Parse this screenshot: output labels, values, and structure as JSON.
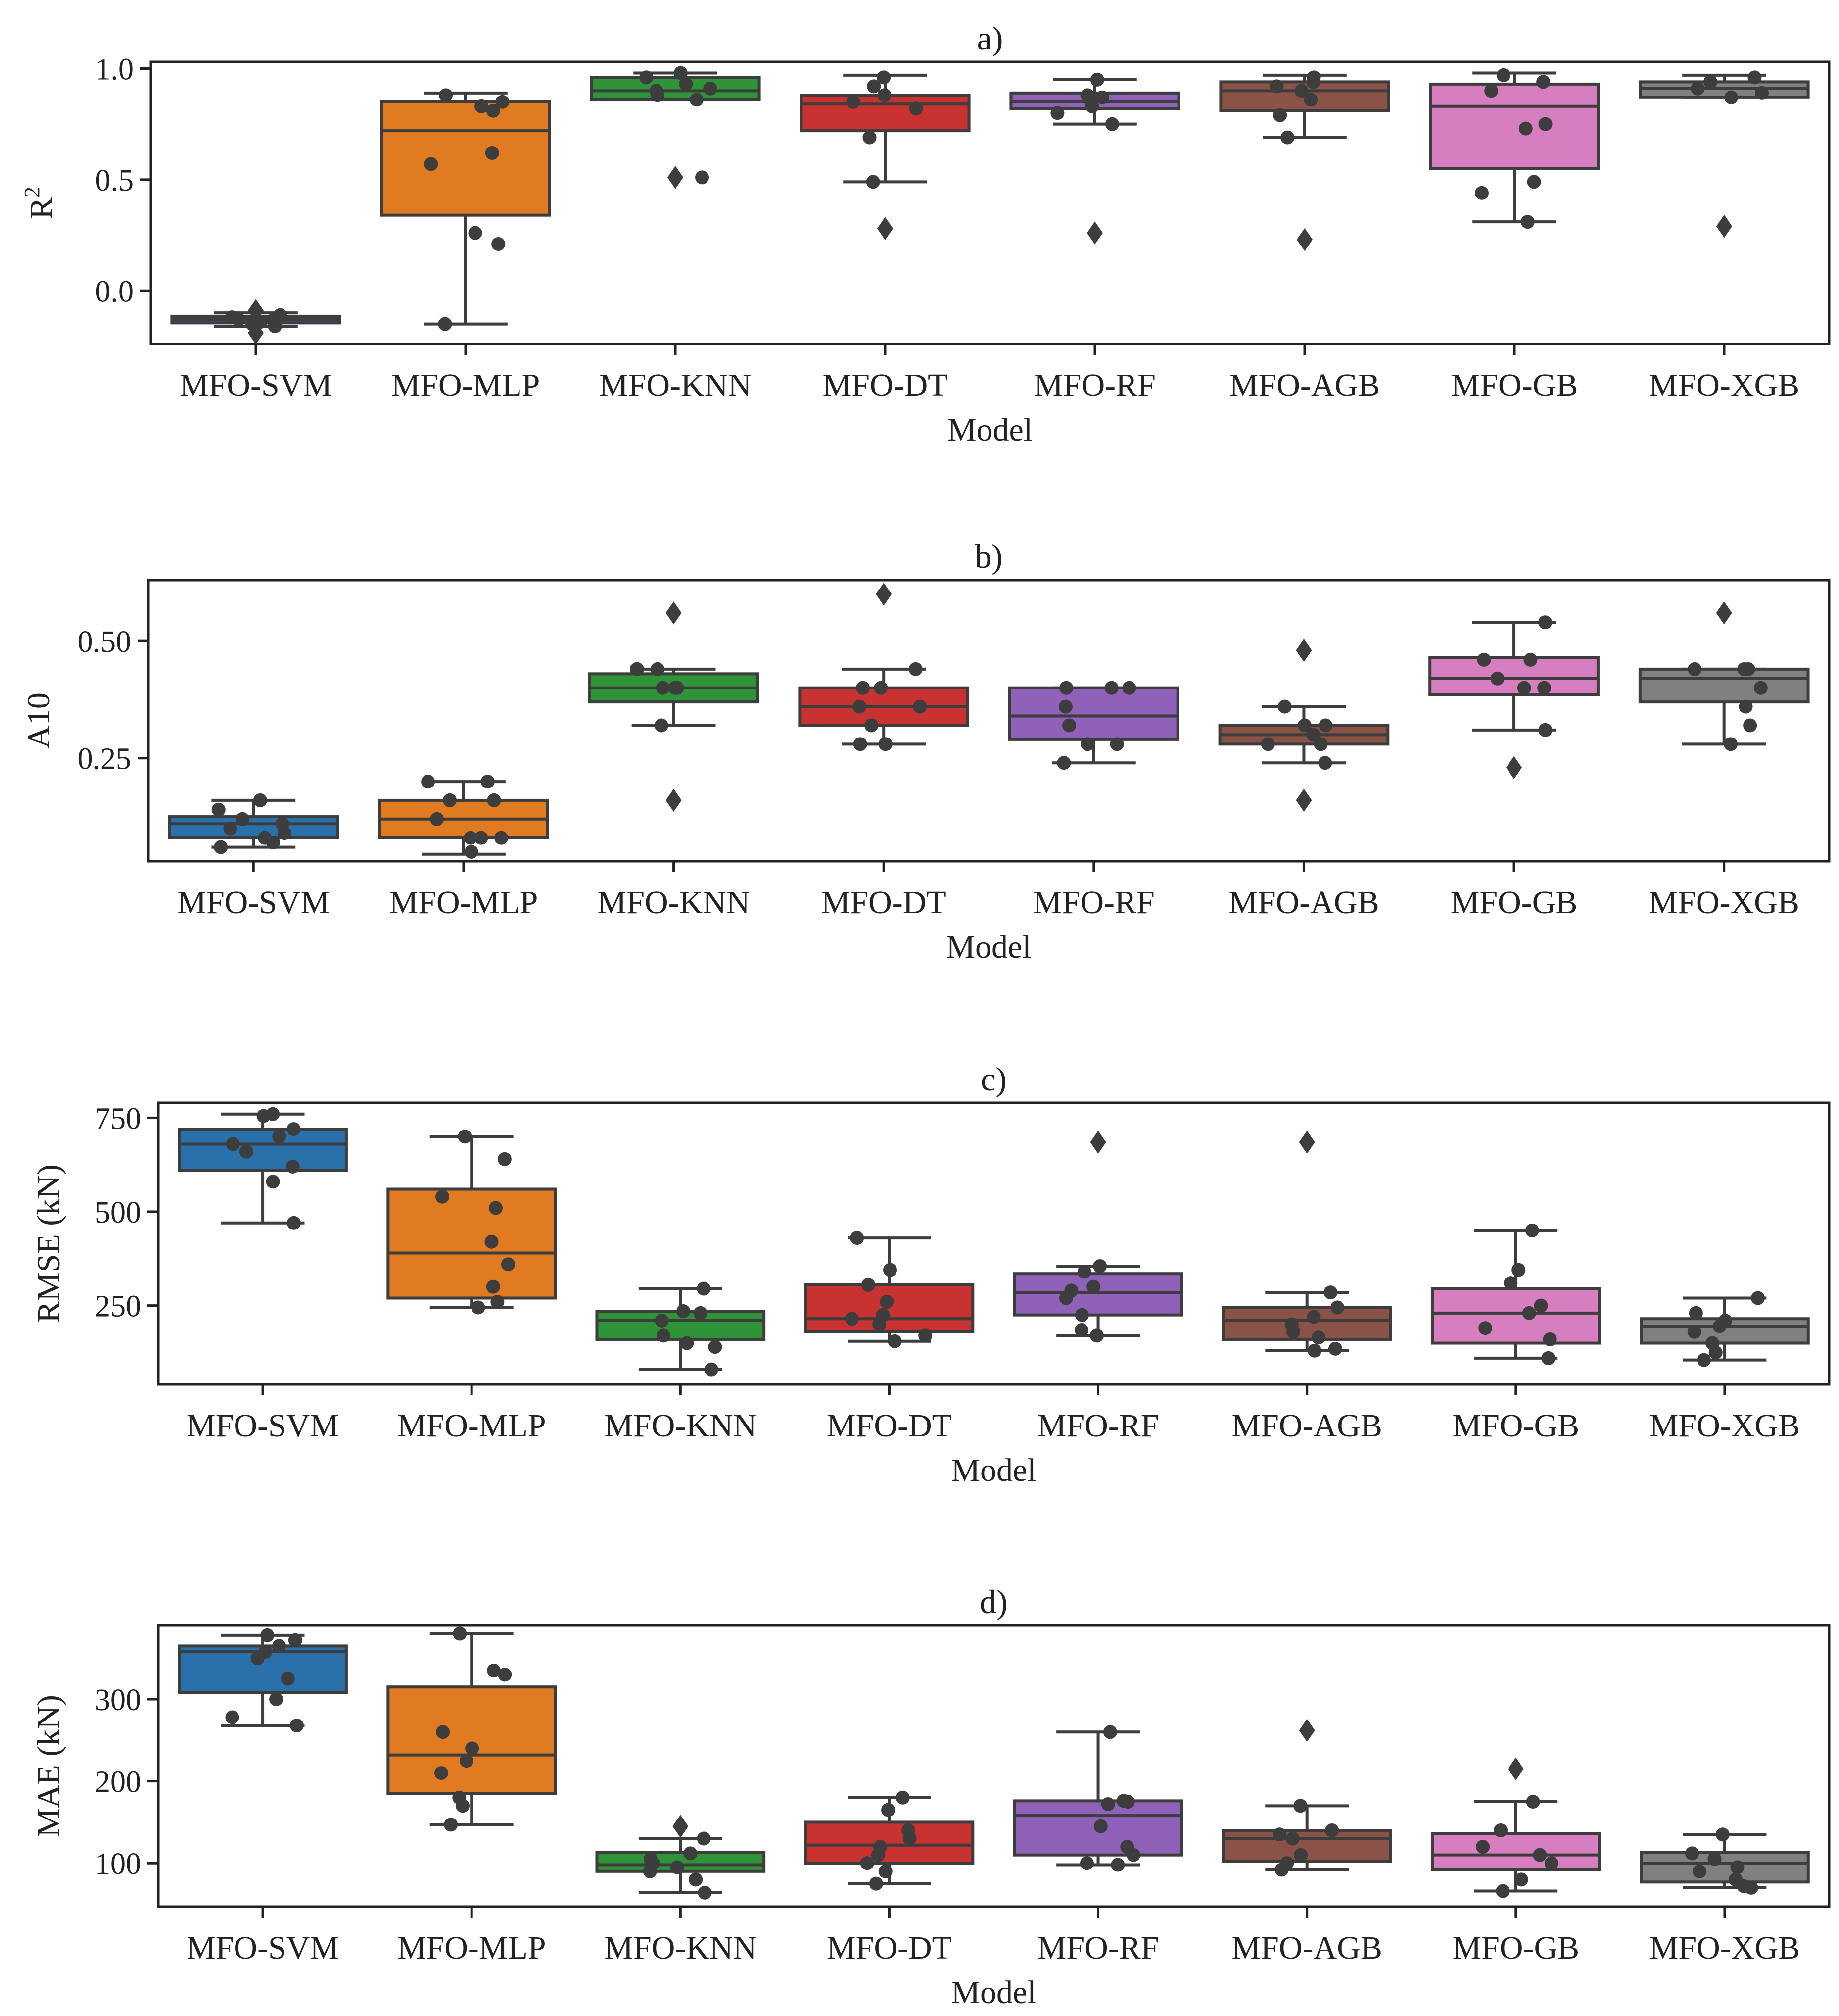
{
  "colors": {
    "MFO-SVM": "#2a70aa",
    "MFO-MLP": "#e07b21",
    "MFO-KNN": "#2e9437",
    "MFO-DT": "#c83230",
    "MFO-RF": "#9061b8",
    "MFO-AGB": "#8b5247",
    "MFO-GB": "#d77ec0",
    "MFO-XGB": "#808080",
    "edge": "#3d3d3d",
    "point": "#3d3d3d"
  },
  "chart_data": [
    {
      "type": "box",
      "panel": "a)",
      "title": "a)",
      "xlabel": "Model",
      "ylabel": "R",
      "ylabel_superscript": "2",
      "ylim": [
        -0.24,
        1.03
      ],
      "yticks": [
        0.0,
        0.5,
        1.0
      ],
      "ytick_labels": [
        "0.0",
        "0.5",
        "1.0"
      ],
      "categories": [
        "MFO-SVM",
        "MFO-MLP",
        "MFO-KNN",
        "MFO-DT",
        "MFO-RF",
        "MFO-AGB",
        "MFO-GB",
        "MFO-XGB"
      ],
      "boxes": [
        {
          "q1": -0.145,
          "median": -0.13,
          "q3": -0.115,
          "whislo": -0.16,
          "whishi": -0.1,
          "outliers": [
            -0.09,
            -0.19
          ]
        },
        {
          "q1": 0.34,
          "median": 0.72,
          "q3": 0.85,
          "whislo": -0.15,
          "whishi": 0.89,
          "outliers": []
        },
        {
          "q1": 0.86,
          "median": 0.9,
          "q3": 0.96,
          "whislo": 0.86,
          "whishi": 0.98,
          "outliers": [
            0.51
          ]
        },
        {
          "q1": 0.72,
          "median": 0.84,
          "q3": 0.88,
          "whislo": 0.49,
          "whishi": 0.97,
          "outliers": [
            0.28
          ]
        },
        {
          "q1": 0.82,
          "median": 0.85,
          "q3": 0.89,
          "whislo": 0.75,
          "whishi": 0.95,
          "outliers": [
            0.26
          ]
        },
        {
          "q1": 0.81,
          "median": 0.9,
          "q3": 0.94,
          "whislo": 0.69,
          "whishi": 0.97,
          "outliers": [
            0.23
          ]
        },
        {
          "q1": 0.55,
          "median": 0.83,
          "q3": 0.93,
          "whislo": 0.31,
          "whishi": 0.98,
          "outliers": []
        },
        {
          "q1": 0.87,
          "median": 0.91,
          "q3": 0.94,
          "whislo": 0.87,
          "whishi": 0.97,
          "outliers": [
            0.29
          ]
        }
      ],
      "points": [
        [
          -0.12,
          -0.13,
          -0.14,
          -0.15,
          -0.13,
          -0.11,
          -0.16,
          -0.14
        ],
        [
          0.88,
          0.85,
          0.83,
          0.81,
          0.62,
          0.57,
          0.26,
          0.21,
          -0.15
        ],
        [
          0.98,
          0.96,
          0.93,
          0.91,
          0.9,
          0.88,
          0.86,
          0.51
        ],
        [
          0.96,
          0.92,
          0.88,
          0.85,
          0.82,
          0.69,
          0.49
        ],
        [
          0.95,
          0.88,
          0.87,
          0.86,
          0.83,
          0.8,
          0.75
        ],
        [
          0.96,
          0.94,
          0.92,
          0.9,
          0.86,
          0.79,
          0.69
        ],
        [
          0.97,
          0.94,
          0.9,
          0.75,
          0.73,
          0.49,
          0.44,
          0.31
        ],
        [
          0.96,
          0.94,
          0.91,
          0.89,
          0.87
        ]
      ]
    },
    {
      "type": "box",
      "panel": "b)",
      "title": "b)",
      "xlabel": "Model",
      "ylabel": "A10",
      "ylim": [
        0.03,
        0.63
      ],
      "yticks": [
        0.25,
        0.5
      ],
      "ytick_labels": [
        "0.25",
        "0.50"
      ],
      "categories": [
        "MFO-SVM",
        "MFO-MLP",
        "MFO-KNN",
        "MFO-DT",
        "MFO-RF",
        "MFO-AGB",
        "MFO-GB",
        "MFO-XGB"
      ],
      "boxes": [
        {
          "q1": 0.08,
          "median": 0.11,
          "q3": 0.125,
          "whislo": 0.06,
          "whishi": 0.16,
          "outliers": []
        },
        {
          "q1": 0.08,
          "median": 0.12,
          "q3": 0.16,
          "whislo": 0.045,
          "whishi": 0.2,
          "outliers": []
        },
        {
          "q1": 0.37,
          "median": 0.4,
          "q3": 0.43,
          "whislo": 0.32,
          "whishi": 0.44,
          "outliers": [
            0.56,
            0.16
          ]
        },
        {
          "q1": 0.32,
          "median": 0.36,
          "q3": 0.4,
          "whislo": 0.28,
          "whishi": 0.44,
          "outliers": [
            0.6
          ]
        },
        {
          "q1": 0.29,
          "median": 0.34,
          "q3": 0.4,
          "whislo": 0.24,
          "whishi": 0.4,
          "outliers": []
        },
        {
          "q1": 0.28,
          "median": 0.3,
          "q3": 0.32,
          "whislo": 0.24,
          "whishi": 0.36,
          "outliers": [
            0.48,
            0.16
          ]
        },
        {
          "q1": 0.385,
          "median": 0.42,
          "q3": 0.465,
          "whislo": 0.31,
          "whishi": 0.54,
          "outliers": [
            0.23
          ]
        },
        {
          "q1": 0.37,
          "median": 0.42,
          "q3": 0.44,
          "whislo": 0.28,
          "whishi": 0.44,
          "outliers": [
            0.56
          ]
        }
      ],
      "points": [
        [
          0.16,
          0.14,
          0.12,
          0.11,
          0.1,
          0.09,
          0.08,
          0.07,
          0.06
        ],
        [
          0.2,
          0.2,
          0.16,
          0.16,
          0.12,
          0.08,
          0.08,
          0.08,
          0.05
        ],
        [
          0.44,
          0.44,
          0.44,
          0.4,
          0.4,
          0.4,
          0.32
        ],
        [
          0.44,
          0.4,
          0.4,
          0.36,
          0.36,
          0.32,
          0.28,
          0.28
        ],
        [
          0.4,
          0.4,
          0.4,
          0.36,
          0.32,
          0.28,
          0.28,
          0.24
        ],
        [
          0.36,
          0.32,
          0.32,
          0.3,
          0.28,
          0.28,
          0.24
        ],
        [
          0.54,
          0.46,
          0.46,
          0.42,
          0.4,
          0.4,
          0.31
        ],
        [
          0.44,
          0.44,
          0.44,
          0.4,
          0.36,
          0.32,
          0.28
        ]
      ]
    },
    {
      "type": "box",
      "panel": "c)",
      "title": "c)",
      "xlabel": "Model",
      "ylabel": "RMSE (kN)",
      "ylim": [
        40,
        790
      ],
      "yticks": [
        250,
        500,
        750
      ],
      "ytick_labels": [
        "250",
        "500",
        "750"
      ],
      "categories": [
        "MFO-SVM",
        "MFO-MLP",
        "MFO-KNN",
        "MFO-DT",
        "MFO-RF",
        "MFO-AGB",
        "MFO-GB",
        "MFO-XGB"
      ],
      "boxes": [
        {
          "q1": 610,
          "median": 680,
          "q3": 720,
          "whislo": 470,
          "whishi": 760,
          "outliers": []
        },
        {
          "q1": 270,
          "median": 390,
          "q3": 560,
          "whislo": 245,
          "whishi": 700,
          "outliers": []
        },
        {
          "q1": 160,
          "median": 210,
          "q3": 235,
          "whislo": 80,
          "whishi": 295,
          "outliers": []
        },
        {
          "q1": 180,
          "median": 215,
          "q3": 305,
          "whislo": 155,
          "whishi": 430,
          "outliers": []
        },
        {
          "q1": 225,
          "median": 285,
          "q3": 335,
          "whislo": 170,
          "whishi": 355,
          "outliers": [
            685
          ]
        },
        {
          "q1": 160,
          "median": 210,
          "q3": 245,
          "whislo": 130,
          "whishi": 285,
          "outliers": [
            685
          ]
        },
        {
          "q1": 150,
          "median": 230,
          "q3": 295,
          "whislo": 110,
          "whishi": 450,
          "outliers": []
        },
        {
          "q1": 150,
          "median": 195,
          "q3": 215,
          "whislo": 105,
          "whishi": 270,
          "outliers": []
        }
      ],
      "points": [
        [
          760,
          755,
          720,
          700,
          680,
          660,
          620,
          580,
          470
        ],
        [
          700,
          640,
          540,
          510,
          420,
          360,
          300,
          260,
          245
        ],
        [
          295,
          235,
          230,
          210,
          170,
          150,
          140,
          80
        ],
        [
          430,
          345,
          305,
          260,
          225,
          215,
          200,
          170,
          155
        ],
        [
          355,
          340,
          300,
          290,
          270,
          225,
          185,
          170
        ],
        [
          285,
          245,
          220,
          200,
          180,
          165,
          135,
          130
        ],
        [
          450,
          345,
          310,
          250,
          230,
          190,
          160,
          110
        ],
        [
          270,
          230,
          210,
          195,
          180,
          150,
          125,
          105
        ]
      ]
    },
    {
      "type": "box",
      "panel": "d)",
      "title": "d)",
      "xlabel": "Model",
      "ylabel": "MAE (kN)",
      "ylim": [
        47,
        390
      ],
      "yticks": [
        100,
        200,
        300
      ],
      "ytick_labels": [
        "100",
        "200",
        "300"
      ],
      "categories": [
        "MFO-SVM",
        "MFO-MLP",
        "MFO-KNN",
        "MFO-DT",
        "MFO-RF",
        "MFO-AGB",
        "MFO-GB",
        "MFO-XGB"
      ],
      "boxes": [
        {
          "q1": 308,
          "median": 358,
          "q3": 365,
          "whislo": 268,
          "whishi": 378,
          "outliers": []
        },
        {
          "q1": 185,
          "median": 232,
          "q3": 315,
          "whislo": 147,
          "whishi": 380,
          "outliers": []
        },
        {
          "q1": 90,
          "median": 98,
          "q3": 113,
          "whislo": 64,
          "whishi": 130,
          "outliers": [
            145
          ]
        },
        {
          "q1": 100,
          "median": 122,
          "q3": 150,
          "whislo": 75,
          "whishi": 180,
          "outliers": []
        },
        {
          "q1": 110,
          "median": 158,
          "q3": 176,
          "whislo": 98,
          "whishi": 260,
          "outliers": []
        },
        {
          "q1": 102,
          "median": 130,
          "q3": 140,
          "whislo": 92,
          "whishi": 170,
          "outliers": [
            262
          ]
        },
        {
          "q1": 92,
          "median": 110,
          "q3": 136,
          "whislo": 66,
          "whishi": 175,
          "outliers": [
            215
          ]
        },
        {
          "q1": 77,
          "median": 100,
          "q3": 113,
          "whislo": 70,
          "whishi": 135,
          "outliers": []
        }
      ],
      "points": [
        [
          378,
          372,
          365,
          358,
          350,
          325,
          300,
          278,
          268
        ],
        [
          380,
          335,
          330,
          260,
          240,
          225,
          210,
          180,
          170,
          147
        ],
        [
          130,
          112,
          105,
          100,
          95,
          90,
          80,
          64
        ],
        [
          180,
          165,
          140,
          130,
          120,
          110,
          100,
          90,
          75
        ],
        [
          260,
          176,
          175,
          172,
          145,
          120,
          110,
          100,
          98
        ],
        [
          170,
          140,
          135,
          130,
          110,
          100,
          92
        ],
        [
          175,
          140,
          120,
          110,
          100,
          80,
          66
        ],
        [
          135,
          112,
          105,
          95,
          90,
          80,
          72,
          70
        ]
      ]
    }
  ]
}
